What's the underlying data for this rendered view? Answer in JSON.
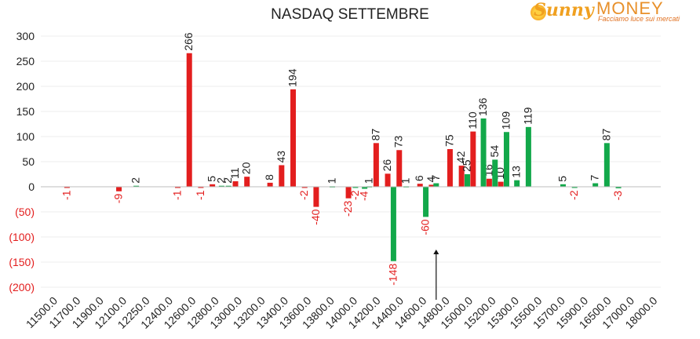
{
  "header": {
    "title": "NASDAQ SETTEMBRE",
    "logo_word1": "Sunny",
    "logo_word2": "MONEY",
    "logo_tagline": "Facciamo luce sui mercati"
  },
  "colors": {
    "red": "#e31e1e",
    "green": "#12a84a",
    "negative_label": "#e31e1e",
    "text": "#222222"
  },
  "chart_data": {
    "type": "bar",
    "title": "NASDAQ SETTEMBRE",
    "ylim": [
      -200,
      300
    ],
    "yticks": [
      "300",
      "250",
      "200",
      "150",
      "100",
      "50",
      "0",
      "(50)",
      "(100)",
      "(150)",
      "(200)"
    ],
    "ytick_values": [
      300,
      250,
      200,
      150,
      100,
      50,
      0,
      -50,
      -100,
      -150,
      -200
    ],
    "categories": [
      "11500.0",
      "11700.0",
      "11900.0",
      "12100.0",
      "12250.0",
      "12400.0",
      "12600.0",
      "12800.0",
      "13000.0",
      "13200.0",
      "13400.0",
      "13600.0",
      "13800.0",
      "14000.0",
      "14200.0",
      "14400.0",
      "14600.0",
      "14800.0",
      "15000.0",
      "15200.0",
      "15300.0",
      "15500.0",
      "15700.0",
      "15900.0",
      "16500.0",
      "17000.0",
      "18000.0"
    ],
    "series": [
      {
        "color": "red",
        "bars": [
          {
            "i": 1.0,
            "v": -1
          },
          {
            "i": 3.25,
            "v": -9
          },
          {
            "i": 5.8,
            "v": -1
          },
          {
            "i": 6.3,
            "v": 266
          },
          {
            "i": 6.8,
            "v": -1
          },
          {
            "i": 7.3,
            "v": 5
          },
          {
            "i": 8.3,
            "v": 11
          },
          {
            "i": 8.8,
            "v": 20
          },
          {
            "i": 9.8,
            "v": 8
          },
          {
            "i": 10.3,
            "v": 43
          },
          {
            "i": 10.8,
            "v": 194
          },
          {
            "i": 11.3,
            "v": -2
          },
          {
            "i": 11.8,
            "v": -40
          },
          {
            "i": 13.2,
            "v": -23
          },
          {
            "i": 14.4,
            "v": 87
          },
          {
            "i": 14.9,
            "v": 26
          },
          {
            "i": 15.4,
            "v": 73
          },
          {
            "i": 16.3,
            "v": 6
          },
          {
            "i": 16.8,
            "v": 4
          },
          {
            "i": 17.6,
            "v": 75
          },
          {
            "i": 18.1,
            "v": 42
          },
          {
            "i": 18.6,
            "v": 110
          },
          {
            "i": 19.3,
            "v": 16
          },
          {
            "i": 19.8,
            "v": 10
          }
        ]
      },
      {
        "color": "green",
        "bars": [
          {
            "i": 4.0,
            "v": 2
          },
          {
            "i": 7.7,
            "v": 2
          },
          {
            "i": 8.0,
            "v": 2
          },
          {
            "i": 12.5,
            "v": 1
          },
          {
            "i": 13.5,
            "v": -2
          },
          {
            "i": 13.9,
            "v": -4
          },
          {
            "i": 14.1,
            "v": 1
          },
          {
            "i": 15.15,
            "v": -148
          },
          {
            "i": 15.7,
            "v": 1
          },
          {
            "i": 16.55,
            "v": -60
          },
          {
            "i": 17.0,
            "v": 7
          },
          {
            "i": 18.35,
            "v": 25
          },
          {
            "i": 19.05,
            "v": 136
          },
          {
            "i": 19.55,
            "v": 54
          },
          {
            "i": 20.05,
            "v": 109
          },
          {
            "i": 20.5,
            "v": 13
          },
          {
            "i": 21.0,
            "v": 119
          },
          {
            "i": 22.5,
            "v": 5
          },
          {
            "i": 23.0,
            "v": -2
          },
          {
            "i": 23.9,
            "v": 7
          },
          {
            "i": 24.4,
            "v": 87
          },
          {
            "i": 24.9,
            "v": -3
          }
        ]
      }
    ],
    "annotations": [
      {
        "type": "arrow",
        "x_index": 17.0,
        "from_value": -225,
        "to_value": -125
      }
    ]
  }
}
